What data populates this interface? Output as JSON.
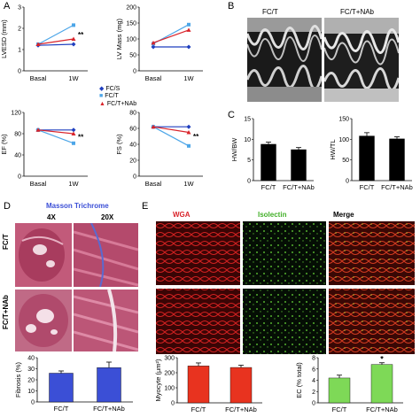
{
  "panels": {
    "A": "A",
    "B": "B",
    "C": "C",
    "D": "D",
    "E": "E"
  },
  "panelA": {
    "legend": [
      "FC/S",
      "FC/T",
      "FC/T+NAb"
    ],
    "colors": {
      "FC/S": "#1f3fbf",
      "FC/T": "#4da6e8",
      "FC/T+NAb": "#d9232a"
    },
    "x_categories": [
      "Basal",
      "1W"
    ],
    "charts": [
      {
        "ylabel": "LVESD (mm)",
        "yticks": [
          "0",
          "1",
          "2",
          "3"
        ],
        "ylim": [
          0,
          3
        ],
        "series": [
          {
            "name": "FC/S",
            "values": [
              1.2,
              1.25
            ]
          },
          {
            "name": "FC/T",
            "values": [
              1.25,
              2.15
            ]
          },
          {
            "name": "FC/T+NAb",
            "values": [
              1.25,
              1.5
            ]
          }
        ],
        "marker": "**"
      },
      {
        "ylabel": "LV Mass (mg)",
        "yticks": [
          "0",
          "50",
          "100",
          "150",
          "200"
        ],
        "ylim": [
          0,
          200
        ],
        "series": [
          {
            "name": "FC/S",
            "values": [
              75,
              75
            ]
          },
          {
            "name": "FC/T",
            "values": [
              85,
              145
            ]
          },
          {
            "name": "FC/T+NAb",
            "values": [
              88,
              128
            ]
          }
        ],
        "marker": ""
      },
      {
        "ylabel": "EF (%)",
        "yticks": [
          "0",
          "40",
          "80",
          "120"
        ],
        "ylim": [
          0,
          120
        ],
        "series": [
          {
            "name": "FC/S",
            "values": [
              87,
              87
            ]
          },
          {
            "name": "FC/T",
            "values": [
              87,
              62
            ]
          },
          {
            "name": "FC/T+NAb",
            "values": [
              87,
              80
            ]
          }
        ],
        "marker": "**"
      },
      {
        "ylabel": "FS (%)",
        "yticks": [
          "0",
          "20",
          "40",
          "60",
          "80"
        ],
        "ylim": [
          0,
          80
        ],
        "series": [
          {
            "name": "FC/S",
            "values": [
              62,
              62
            ]
          },
          {
            "name": "FC/T",
            "values": [
              62,
              38
            ]
          },
          {
            "name": "FC/T+NAb",
            "values": [
              62,
              55
            ]
          }
        ],
        "marker": "**"
      }
    ]
  },
  "panelB": {
    "labels": [
      "FC/T",
      "FC/T+NAb"
    ]
  },
  "panelC": {
    "charts": [
      {
        "ylabel": "HW/BW",
        "yticks": [
          "0",
          "5",
          "10",
          "15"
        ],
        "ylim": [
          0,
          15
        ],
        "categories": [
          "FC/T",
          "FC/T+NAb"
        ],
        "values": [
          8.8,
          7.5
        ],
        "errors": [
          0.5,
          0.5
        ]
      },
      {
        "ylabel": "HW/TL",
        "yticks": [
          "0",
          "50",
          "100",
          "150"
        ],
        "ylim": [
          0,
          150
        ],
        "categories": [
          "FC/T",
          "FC/T+NAb"
        ],
        "values": [
          108,
          101
        ],
        "errors": [
          8,
          5
        ]
      }
    ]
  },
  "panelD": {
    "title": "Masson Trichrome",
    "columns": [
      "4X",
      "20X"
    ],
    "rows": [
      "FC/T",
      "FC/T+NAb"
    ],
    "chart": {
      "ylabel": "Fibrosis (%)",
      "yticks": [
        "0",
        "10",
        "20",
        "30",
        "40"
      ],
      "ylim": [
        0,
        40
      ],
      "categories": [
        "FC/T",
        "FC/T+NAb"
      ],
      "values": [
        26,
        31
      ],
      "errors": [
        2,
        5
      ],
      "color": "#3b4fd6"
    }
  },
  "panelE": {
    "columns": [
      "WGA",
      "Isolectin",
      "Merge"
    ],
    "column_colors": [
      "#d9232a",
      "#44b02a",
      "#000000"
    ],
    "charts": [
      {
        "ylabel": "Myocyte (μm²)",
        "yticks": [
          "0",
          "100",
          "200",
          "300"
        ],
        "ylim": [
          0,
          300
        ],
        "categories": [
          "FC/T",
          "FC/T+NAb"
        ],
        "values": [
          245,
          235
        ],
        "errors": [
          20,
          15
        ],
        "color": "#e8331f"
      },
      {
        "ylabel": "EC (% total)",
        "yticks": [
          "0",
          "2",
          "4",
          "6",
          "8"
        ],
        "ylim": [
          0,
          8
        ],
        "categories": [
          "FC/T",
          "FC/T+NAb"
        ],
        "values": [
          4.4,
          6.8
        ],
        "errors": [
          0.5,
          0.3
        ],
        "color": "#7ed957",
        "marker": "*"
      }
    ]
  }
}
